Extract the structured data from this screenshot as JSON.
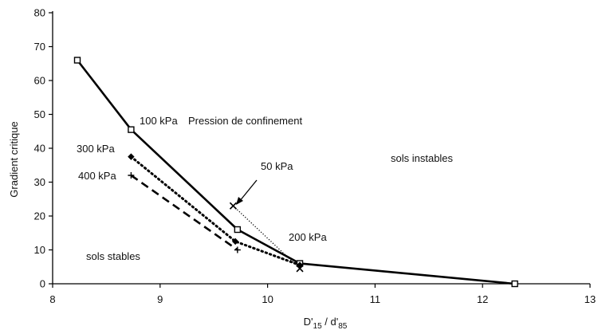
{
  "chart_data": {
    "type": "line",
    "title": "",
    "ylabel": "Gradient critique",
    "xlabel": {
      "D": "D'",
      "d": "d'",
      "sub15": "15",
      "sub85": "85",
      "slash": " / "
    },
    "xlim": [
      8,
      13
    ],
    "ylim": [
      0,
      80
    ],
    "xticks": [
      8,
      9,
      10,
      11,
      12,
      13
    ],
    "yticks": [
      0,
      10,
      20,
      30,
      40,
      50,
      60,
      70,
      80
    ],
    "grid": false,
    "legend": "none",
    "series": [
      {
        "label_id": "100kpa",
        "style": "solid",
        "color": "#000000",
        "marker": "square",
        "points": [
          [
            8.23,
            66
          ],
          [
            8.73,
            45.5
          ],
          [
            9.72,
            16
          ],
          [
            10.3,
            6
          ],
          [
            12.3,
            0
          ]
        ]
      },
      {
        "label_id": "300kpa",
        "style": "dotted",
        "color": "#000000",
        "marker": "diamond",
        "points": [
          [
            8.73,
            37.5
          ],
          [
            9.7,
            12.5
          ],
          [
            10.3,
            5.5
          ]
        ]
      },
      {
        "label_id": "400kpa",
        "style": "dashed",
        "color": "#000000",
        "marker": "plus",
        "points": [
          [
            8.73,
            32
          ],
          [
            9.72,
            10
          ]
        ]
      },
      {
        "label_id": "50kpa",
        "style": "thin-dotted",
        "color": "#000000",
        "marker": "x",
        "points": [
          [
            9.68,
            23
          ],
          [
            10.3,
            4.5
          ]
        ]
      }
    ],
    "annotations": {
      "label_100": "100 kPa",
      "label_confinement": "Pression de confinement",
      "label_300": "300 kPa",
      "label_400": "400 kPa",
      "label_50": "50 kPa",
      "label_200": "200 kPa",
      "region_unstable": "sols instables",
      "region_stable": "sols stables"
    }
  }
}
